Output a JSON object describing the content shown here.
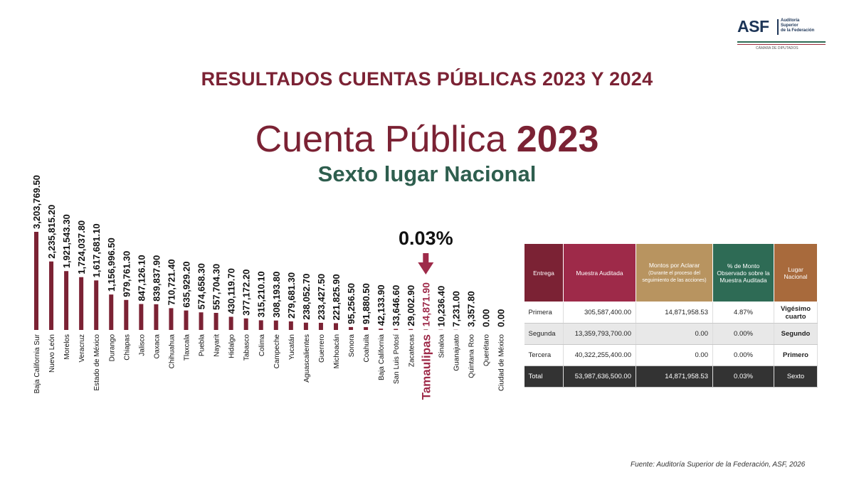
{
  "logo": {
    "acronym": "ASF",
    "lines": [
      "Auditoría",
      "Superior",
      "de la Federación"
    ],
    "sub": "CÁMARA DE DIPUTADOS"
  },
  "header": {
    "title": "RESULTADOS CUENTAS PÚBLICAS 2023 Y 2024",
    "cuenta_label": "Cuenta Pública",
    "cuenta_year": "2023",
    "subtitle": "Sexto lugar Nacional"
  },
  "chart_data": {
    "type": "bar",
    "categories": [
      "Baja California Sur",
      "Nuevo León",
      "Morelos",
      "Veracruz",
      "Estado de México",
      "Durango",
      "Chiapas",
      "Jalisco",
      "Oaxaca",
      "Chihuahua",
      "Tlaxcala",
      "Puebla",
      "Nayarit",
      "Hidalgo",
      "Tabasco",
      "Colima",
      "Campeche",
      "Yucatán",
      "Aguascalientes",
      "Guerrero",
      "Michoacán",
      "Sonora",
      "Coahuila",
      "Baja California",
      "San Luis Potosí",
      "Zacatecas",
      "Tamaulipas",
      "Sinaloa",
      "Guanajuato",
      "Quintana Roo",
      "Querétaro",
      "Ciudad de México"
    ],
    "values": [
      3203769.5,
      2235815.2,
      1921543.3,
      1724037.8,
      1617681.1,
      1156996.5,
      979761.3,
      847126.1,
      839837.9,
      710721.4,
      635929.2,
      574658.3,
      557704.3,
      430119.7,
      377172.2,
      315210.1,
      308193.8,
      279681.3,
      238052.7,
      233427.5,
      221825.9,
      95256.5,
      91880.5,
      42133.9,
      33646.6,
      29002.9,
      14871.9,
      10236.4,
      7231.0,
      3357.8,
      0.0,
      0.0
    ],
    "value_labels": [
      "3,203,769.50",
      "2,235,815.20",
      "1,921,543.30",
      "1,724,037.80",
      "1,617,681.10",
      "1,156,996.50",
      "979,761.30",
      "847,126.10",
      "839,837.90",
      "710,721.40",
      "635,929.20",
      "574,658.30",
      "557,704.30",
      "430,119.70",
      "377,172.20",
      "315,210.10",
      "308,193.80",
      "279,681.30",
      "238,052.70",
      "233,427.50",
      "221,825.90",
      "95,256.50",
      "91,880.50",
      "42,133.90",
      "33,646.60",
      "29,002.90",
      "14,871.90",
      "10,236.40",
      "7,231.00",
      "3,357.80",
      "0.00",
      "0.00"
    ],
    "highlight": "Tamaulipas",
    "highlight_value": "0.03%",
    "bar_color": "#7b2234",
    "highlight_color": "#9e2a49"
  },
  "table": {
    "headers": [
      "Entrega",
      "Muestra Auditada",
      "Montos por Aclarar",
      "% de Monto Observado sobre la Muestra Auditada",
      "Lugar Nacional"
    ],
    "header_note": "(Durante el proceso del seguimiento de las acciones)",
    "rows": [
      [
        "Primera",
        "305,587,400.00",
        "14,871,958.53",
        "4.87%",
        "Vigésimo cuarto"
      ],
      [
        "Segunda",
        "13,359,793,700.00",
        "0.00",
        "0.00%",
        "Segundo"
      ],
      [
        "Tercera",
        "40,322,255,400.00",
        "0.00",
        "0.00%",
        "Primero"
      ],
      [
        "Total",
        "53,987,636,500.00",
        "14,871,958.53",
        "0.03%",
        "Sexto"
      ]
    ]
  },
  "source": "Fuente: Auditoría Superior de la Federación, ASF, 2026"
}
